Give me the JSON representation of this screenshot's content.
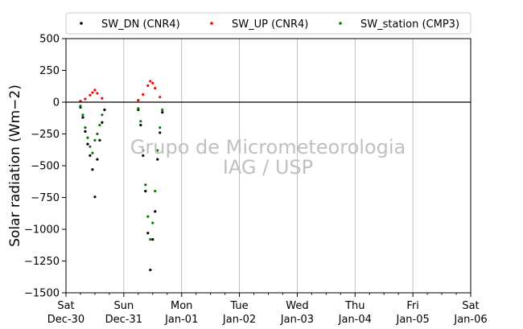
{
  "chart_data": {
    "type": "scatter",
    "ylabel": "Solar radiation (Wm−2)",
    "ylim": [
      -1500,
      500
    ],
    "yticks": [
      500,
      250,
      0,
      -250,
      -500,
      -750,
      -1000,
      -1250,
      -1500
    ],
    "xlim": [
      "2023-12-30",
      "2024-01-06"
    ],
    "xticks": [
      {
        "date": "2023-12-30",
        "day": "Sat",
        "label": "Dec-30"
      },
      {
        "date": "2023-12-31",
        "day": "Sun",
        "label": "Dec-31"
      },
      {
        "date": "2024-01-01",
        "day": "Mon",
        "label": "Jan-01"
      },
      {
        "date": "2024-01-02",
        "day": "Tue",
        "label": "Jan-02"
      },
      {
        "date": "2024-01-03",
        "day": "Wed",
        "label": "Jan-03"
      },
      {
        "date": "2024-01-04",
        "day": "Thu",
        "label": "Jan-04"
      },
      {
        "date": "2024-01-05",
        "day": "Fri",
        "label": "Jan-05"
      },
      {
        "date": "2024-01-06",
        "day": "Sat",
        "label": "Jan-06"
      }
    ],
    "grid": "vertical",
    "legend_position": "top",
    "watermark": [
      "Grupo de Micrometeorologia",
      "IAG / USP"
    ],
    "series": [
      {
        "name": "SW_DN (CNR4)",
        "color": "#000000",
        "points": [
          {
            "x": "2023-12-30 06:00",
            "y": -40
          },
          {
            "x": "2023-12-30 07:00",
            "y": -120
          },
          {
            "x": "2023-12-30 08:00",
            "y": -230
          },
          {
            "x": "2023-12-30 09:00",
            "y": -330
          },
          {
            "x": "2023-12-30 10:00",
            "y": -420
          },
          {
            "x": "2023-12-30 11:00",
            "y": -530
          },
          {
            "x": "2023-12-30 12:00",
            "y": -745
          },
          {
            "x": "2023-12-30 13:00",
            "y": -450
          },
          {
            "x": "2023-12-30 14:00",
            "y": -300
          },
          {
            "x": "2023-12-30 15:00",
            "y": -160
          },
          {
            "x": "2023-12-30 16:00",
            "y": -60
          },
          {
            "x": "2023-12-31 06:00",
            "y": -60
          },
          {
            "x": "2023-12-31 07:00",
            "y": -180
          },
          {
            "x": "2023-12-31 08:00",
            "y": -420
          },
          {
            "x": "2023-12-31 09:00",
            "y": -700
          },
          {
            "x": "2023-12-31 10:00",
            "y": -1030
          },
          {
            "x": "2023-12-31 11:00",
            "y": -1320
          },
          {
            "x": "2023-12-31 12:00",
            "y": -1080
          },
          {
            "x": "2023-12-31 13:00",
            "y": -860
          },
          {
            "x": "2023-12-31 14:00",
            "y": -450
          },
          {
            "x": "2023-12-31 15:00",
            "y": -240
          },
          {
            "x": "2023-12-31 16:00",
            "y": -80
          }
        ]
      },
      {
        "name": "SW_UP (CNR4)",
        "color": "#ff0000",
        "points": [
          {
            "x": "2023-12-30 06:00",
            "y": 8
          },
          {
            "x": "2023-12-30 08:00",
            "y": 25
          },
          {
            "x": "2023-12-30 10:00",
            "y": 55
          },
          {
            "x": "2023-12-30 11:00",
            "y": 75
          },
          {
            "x": "2023-12-30 12:00",
            "y": 95
          },
          {
            "x": "2023-12-30 13:00",
            "y": 70
          },
          {
            "x": "2023-12-30 15:00",
            "y": 30
          },
          {
            "x": "2023-12-31 06:00",
            "y": 15
          },
          {
            "x": "2023-12-31 08:00",
            "y": 60
          },
          {
            "x": "2023-12-31 10:00",
            "y": 130
          },
          {
            "x": "2023-12-31 11:00",
            "y": 165
          },
          {
            "x": "2023-12-31 12:00",
            "y": 150
          },
          {
            "x": "2023-12-31 13:00",
            "y": 110
          },
          {
            "x": "2023-12-31 15:00",
            "y": 40
          }
        ]
      },
      {
        "name": "SW_station (CMP3)",
        "color": "#008000",
        "points": [
          {
            "x": "2023-12-30 06:00",
            "y": -30
          },
          {
            "x": "2023-12-30 07:00",
            "y": -100
          },
          {
            "x": "2023-12-30 08:00",
            "y": -200
          },
          {
            "x": "2023-12-30 09:00",
            "y": -280
          },
          {
            "x": "2023-12-30 10:00",
            "y": -350
          },
          {
            "x": "2023-12-30 11:00",
            "y": -400
          },
          {
            "x": "2023-12-30 12:00",
            "y": -300
          },
          {
            "x": "2023-12-30 13:00",
            "y": -250
          },
          {
            "x": "2023-12-30 14:00",
            "y": -180
          },
          {
            "x": "2023-12-30 15:00",
            "y": -100
          },
          {
            "x": "2023-12-31 06:00",
            "y": -50
          },
          {
            "x": "2023-12-31 07:00",
            "y": -150
          },
          {
            "x": "2023-12-31 08:00",
            "y": -380
          },
          {
            "x": "2023-12-31 09:00",
            "y": -650
          },
          {
            "x": "2023-12-31 10:00",
            "y": -900
          },
          {
            "x": "2023-12-31 11:00",
            "y": -1080
          },
          {
            "x": "2023-12-31 12:00",
            "y": -950
          },
          {
            "x": "2023-12-31 13:00",
            "y": -700
          },
          {
            "x": "2023-12-31 14:00",
            "y": -380
          },
          {
            "x": "2023-12-31 15:00",
            "y": -200
          },
          {
            "x": "2023-12-31 16:00",
            "y": -60
          }
        ]
      }
    ]
  }
}
